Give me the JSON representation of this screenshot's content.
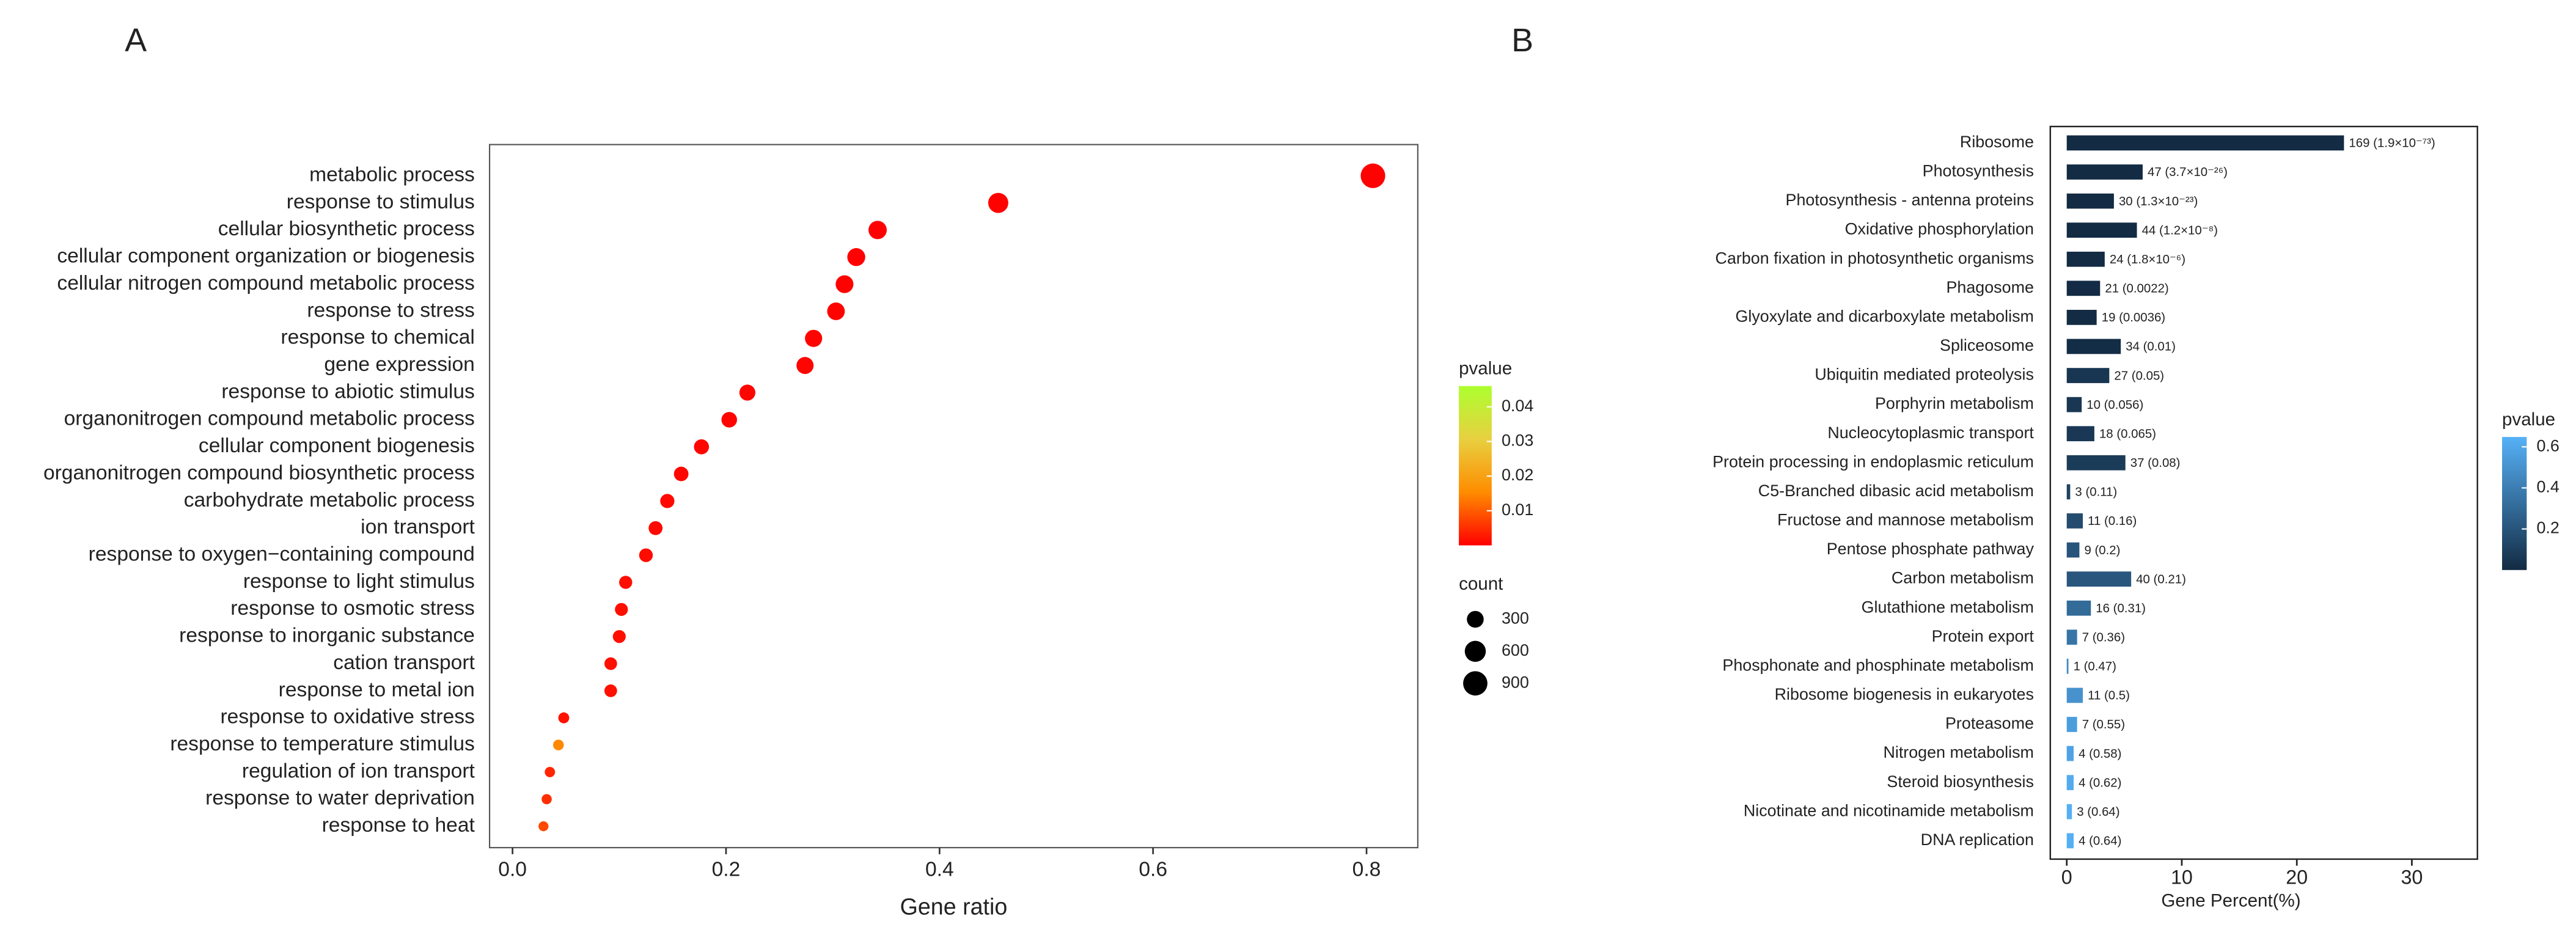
{
  "chart_data": [
    {
      "type": "scatter",
      "panel": "A",
      "xlabel": "Gene ratio",
      "categories": [
        "metabolic process",
        "response to stimulus",
        "cellular biosynthetic process",
        "cellular component organization or biogenesis",
        "cellular nitrogen compound metabolic process",
        "response to stress",
        "response to chemical",
        "gene expression",
        "response to abiotic stimulus",
        "organonitrogen compound metabolic process",
        "cellular component biogenesis",
        "organonitrogen compound biosynthetic process",
        "carbohydrate metabolic process",
        "ion transport",
        "response to oxygen−containing compound",
        "response to light stimulus",
        "response to osmotic stress",
        "response to inorganic substance",
        "cation transport",
        "response to metal ion",
        "response to oxidative stress",
        "response to temperature stimulus",
        "regulation of ion transport",
        "response to water deprivation",
        "response to heat"
      ],
      "x": [
        0.806,
        0.455,
        0.342,
        0.322,
        0.311,
        0.303,
        0.282,
        0.274,
        0.22,
        0.203,
        0.177,
        0.158,
        0.145,
        0.134,
        0.125,
        0.106,
        0.102,
        0.1,
        0.092,
        0.092,
        0.048,
        0.043,
        0.035,
        0.032,
        0.029
      ],
      "counts": [
        927,
        523,
        393,
        370,
        358,
        348,
        324,
        315,
        253,
        233,
        204,
        182,
        167,
        154,
        144,
        122,
        117,
        115,
        106,
        106,
        55,
        49,
        40,
        37,
        33
      ],
      "pvalues": [
        0.0001,
        0.0002,
        0.0001,
        0.0001,
        0.0002,
        0.0002,
        0.0003,
        0.0004,
        0.0005,
        0.0005,
        0.0006,
        0.0008,
        0.001,
        0.001,
        0.0012,
        0.0015,
        0.0015,
        0.0016,
        0.0018,
        0.0018,
        0.002,
        0.015,
        0.004,
        0.005,
        0.008
      ],
      "xlim": [
        -0.0215,
        0.848
      ],
      "xticks": [
        {
          "value": 0,
          "label": "0.0"
        },
        0.2,
        0.4,
        0.6,
        0.8
      ],
      "color_scale": {
        "title": "pvalue",
        "colors": [
          "#ff0000",
          "#ff8c00",
          "#e8d040",
          "#adff2f"
        ],
        "lim": [
          0,
          0.046
        ],
        "ticks": [
          0.01,
          0.02,
          0.03,
          0.04
        ]
      },
      "size_legend": {
        "title": "count",
        "values": [
          300,
          600,
          900
        ]
      }
    },
    {
      "type": "barh",
      "panel": "B",
      "xlabel": "Gene Percent(%)",
      "categories": [
        "Ribosome",
        "Photosynthesis",
        "Photosynthesis - antenna proteins",
        "Oxidative phosphorylation",
        "Carbon fixation in photosynthetic organisms",
        "Phagosome",
        "Glyoxylate and dicarboxylate metabolism",
        "Spliceosome",
        "Ubiquitin mediated proteolysis",
        "Porphyrin metabolism",
        "Nucleocytoplasmic transport",
        "Protein processing in endoplasmic reticulum",
        "C5-Branched dibasic acid metabolism",
        "Fructose and mannose metabolism",
        "Pentose phosphate pathway",
        "Carbon metabolism",
        "Glutathione metabolism",
        "Protein export",
        "Phosphonate and phosphinate metabolism",
        "Ribosome biogenesis in eukaryotes",
        "Proteasome",
        "Nitrogen metabolism",
        "Steroid biosynthesis",
        "Nicotinate and nicotinamide metabolism",
        "DNA replication"
      ],
      "values": [
        24.1,
        6.6,
        4.1,
        6.1,
        3.3,
        2.9,
        2.6,
        4.7,
        3.7,
        1.3,
        2.4,
        5.1,
        0.3,
        1.4,
        1.1,
        5.6,
        2.1,
        0.9,
        0.15,
        1.4,
        0.9,
        0.6,
        0.6,
        0.45,
        0.6
      ],
      "pvalues": [
        1.9e-73,
        3.7e-26,
        1.3e-23,
        1.2e-08,
        1.8e-06,
        0.0022,
        0.0036,
        0.01,
        0.05,
        0.056,
        0.065,
        0.08,
        0.11,
        0.16,
        0.2,
        0.21,
        0.31,
        0.36,
        0.47,
        0.5,
        0.55,
        0.58,
        0.62,
        0.64,
        0.64
      ],
      "bar_labels": [
        "169 (1.9×10⁻⁷³)",
        "47 (3.7×10⁻²⁶)",
        "30 (1.3×10⁻²³)",
        "44 (1.2×10⁻⁸)",
        "24 (1.8×10⁻⁶)",
        "21 (0.0022)",
        "19 (0.0036)",
        "34 (0.01)",
        "27 (0.05)",
        "10 (0.056)",
        "18 (0.065)",
        "37 (0.08)",
        "3 (0.11)",
        "11 (0.16)",
        "9 (0.2)",
        "40 (0.21)",
        "16 (0.31)",
        "7 (0.36)",
        "1 (0.47)",
        "11 (0.5)",
        "7 (0.55)",
        "4 (0.58)",
        "4 (0.62)",
        "3 (0.64)",
        "4 (0.64)"
      ],
      "xlim": [
        -1.43,
        35.7
      ],
      "xticks": [
        0,
        10,
        20,
        30
      ],
      "color_scale": {
        "title": "pvalue",
        "colors": [
          "#132b43",
          "#56b1f7"
        ],
        "lim": [
          0,
          0.648
        ],
        "ticks": [
          0.2,
          0.4,
          0.6
        ]
      }
    }
  ]
}
